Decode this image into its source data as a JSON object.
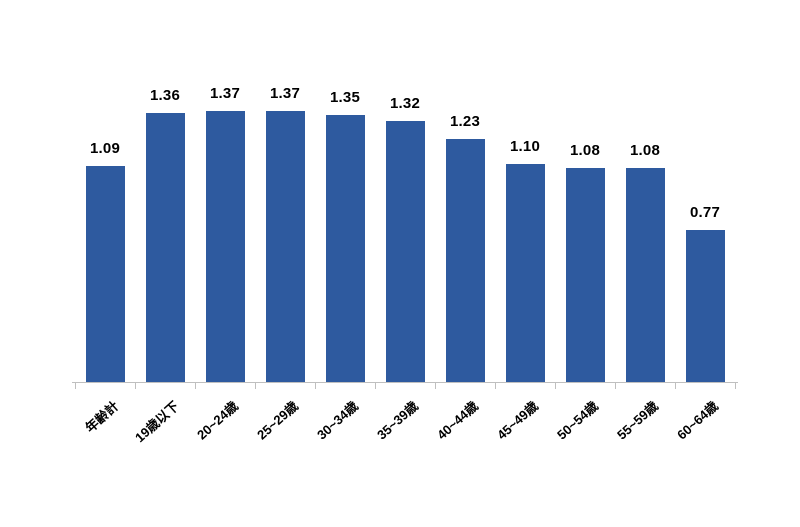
{
  "chart_data": {
    "type": "bar",
    "categories": [
      "年齢計",
      "19歳以下",
      "20~24歳",
      "25~29歳",
      "30~34歳",
      "35~39歳",
      "40~44歳",
      "45~49歳",
      "50~54歳",
      "55~59歳",
      "60~64歳"
    ],
    "values": [
      1.09,
      1.36,
      1.37,
      1.37,
      1.35,
      1.32,
      1.23,
      1.1,
      1.08,
      1.08,
      0.77
    ],
    "value_labels": [
      "1.09",
      "1.36",
      "1.37",
      "1.37",
      "1.35",
      "1.32",
      "1.23",
      "1.10",
      "1.08",
      "1.08",
      "0.77"
    ],
    "title": "",
    "xlabel": "",
    "ylabel": "",
    "bar_color": "#2e5a9f",
    "value_label_color": "#000000",
    "category_label_color": "#000000",
    "axis_line_color": "#bfbfbf",
    "background_color": "#ffffff",
    "grid": false,
    "legend": "none",
    "y_axis_visible": false,
    "data_label_position": "above-bar",
    "category_label_rotation_deg": -42
  }
}
